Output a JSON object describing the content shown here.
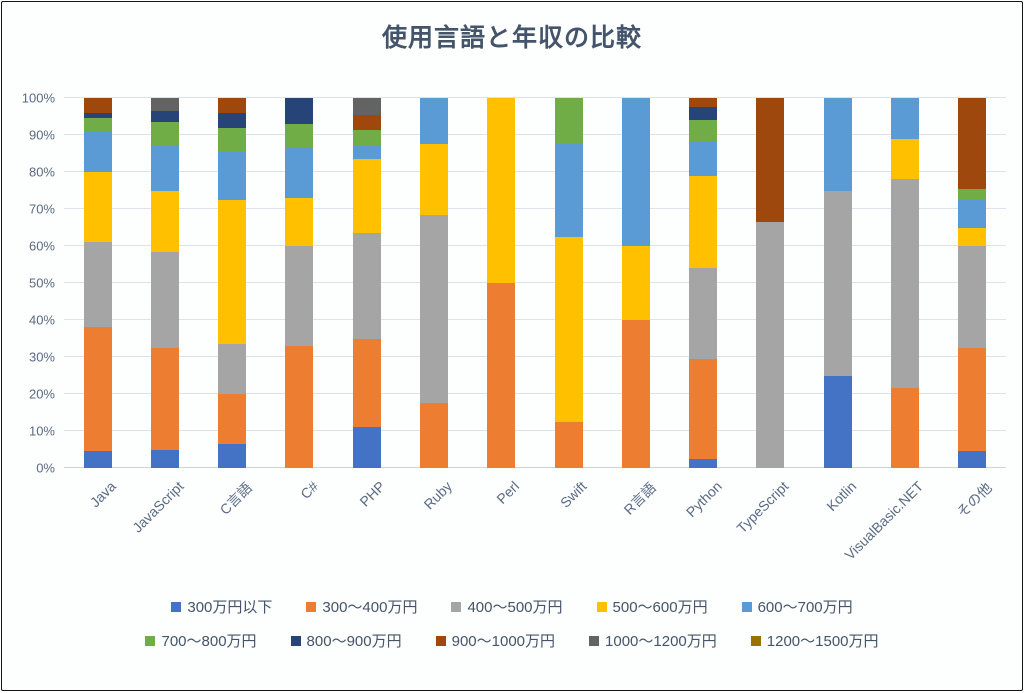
{
  "title": "使用言語と年収の比較",
  "chart_data": {
    "type": "bar",
    "subtype": "100%-stacked-column",
    "title": "使用言語と年収の比較",
    "xlabel": "",
    "ylabel": "",
    "ylim": [
      0,
      100
    ],
    "grid": true,
    "legend_position": "bottom",
    "y_ticks": [
      "0%",
      "10%",
      "20%",
      "30%",
      "40%",
      "50%",
      "60%",
      "70%",
      "80%",
      "90%",
      "100%"
    ],
    "categories": [
      "Java",
      "JavaScript",
      "C言語",
      "C#",
      "PHP",
      "Ruby",
      "Perl",
      "Swift",
      "R言語",
      "Python",
      "TypeScript",
      "Kotlin",
      "VisualBasic.NET",
      "その他"
    ],
    "series": [
      {
        "name": "300万円以下",
        "color": "#4472C4",
        "values": [
          4.5,
          5,
          6.5,
          0,
          11,
          0,
          0,
          0,
          0,
          2.5,
          0,
          25,
          0,
          4.5
        ]
      },
      {
        "name": "300〜400万円",
        "color": "#ED7D31",
        "values": [
          33.5,
          27.5,
          13.5,
          33,
          24,
          17.5,
          50,
          12.5,
          40,
          27,
          0,
          0,
          21.5,
          28
        ]
      },
      {
        "name": "400〜500万円",
        "color": "#A5A5A5",
        "values": [
          23,
          26,
          13.5,
          27,
          28.5,
          51,
          0,
          0,
          0,
          24.5,
          66.5,
          50,
          56.5,
          27.5
        ]
      },
      {
        "name": "500〜600万円",
        "color": "#FFC000",
        "values": [
          19,
          16.5,
          39,
          13,
          20,
          19,
          50,
          50,
          20,
          25,
          0,
          0,
          11,
          5
        ]
      },
      {
        "name": "600〜700万円",
        "color": "#5B9BD5",
        "values": [
          11,
          12,
          13,
          13.5,
          3.5,
          12.5,
          0,
          25,
          40,
          9,
          0,
          25,
          11,
          7.5
        ]
      },
      {
        "name": "700〜800万円",
        "color": "#70AD47",
        "values": [
          3.5,
          6.5,
          6.5,
          6.5,
          4.5,
          0,
          0,
          12.5,
          0,
          6,
          0,
          0,
          0,
          3
        ]
      },
      {
        "name": "800〜900万円",
        "color": "#264478",
        "values": [
          1.5,
          3,
          4,
          7,
          0,
          0,
          0,
          0,
          0,
          3.5,
          0,
          0,
          0,
          0
        ]
      },
      {
        "name": "900〜1000万円",
        "color": "#9E480E",
        "values": [
          4,
          0,
          4,
          0,
          4,
          0,
          0,
          0,
          0,
          2.5,
          33.5,
          0,
          0,
          24.5
        ]
      },
      {
        "name": "1000〜1200万円",
        "color": "#636363",
        "values": [
          0,
          3.5,
          0,
          0,
          4.5,
          0,
          0,
          0,
          0,
          0,
          0,
          0,
          0,
          0
        ]
      },
      {
        "name": "1200〜1500万円",
        "color": "#997300",
        "values": [
          0,
          0,
          0,
          0,
          0,
          0,
          0,
          0,
          0,
          0,
          0,
          0,
          0,
          0
        ]
      }
    ]
  }
}
